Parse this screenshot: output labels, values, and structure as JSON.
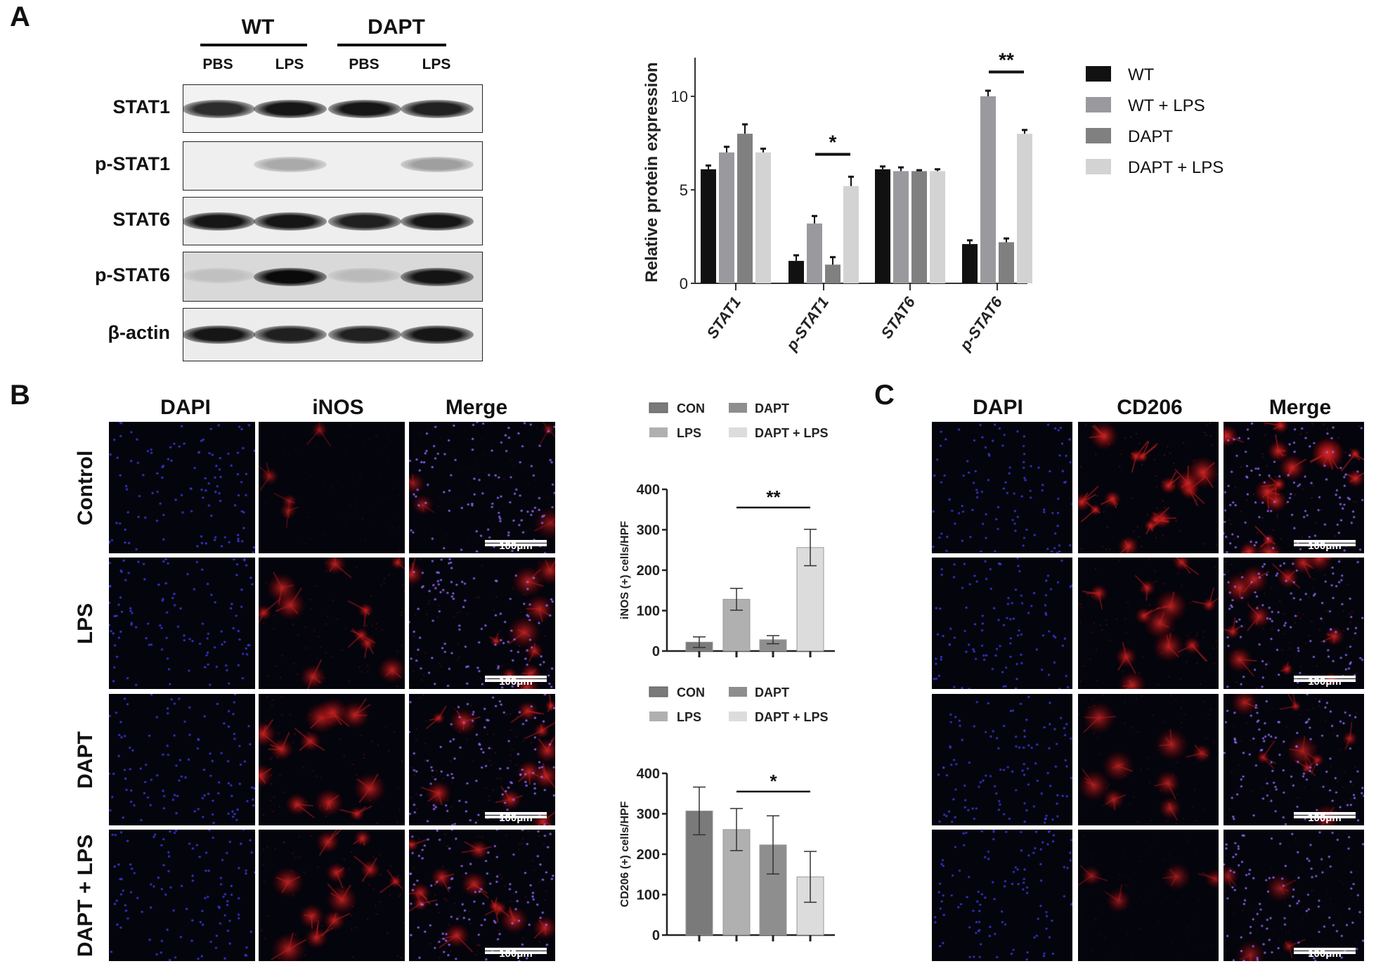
{
  "panels": {
    "a": "A",
    "b": "B",
    "c": "C"
  },
  "blot": {
    "groups": [
      "WT",
      "DAPT"
    ],
    "lanes": [
      "PBS",
      "LPS",
      "PBS",
      "LPS"
    ],
    "rows": [
      {
        "label": "STAT1",
        "bg": "#f2f2f2",
        "bands": [
          0.85,
          0.95,
          0.95,
          0.9
        ]
      },
      {
        "label": "p-STAT1",
        "bg": "#efefef",
        "bands": [
          0.0,
          0.3,
          0.0,
          0.35
        ]
      },
      {
        "label": "STAT6",
        "bg": "#eeeeee",
        "bands": [
          0.95,
          0.95,
          0.9,
          0.95
        ]
      },
      {
        "label": "p-STAT6",
        "bg": "#d9d9d9",
        "bands": [
          0.12,
          1.0,
          0.15,
          0.95
        ]
      },
      {
        "label": "β-actin",
        "bg": "#ececec",
        "bands": [
          0.95,
          0.9,
          0.9,
          0.95
        ]
      }
    ]
  },
  "micro_b": {
    "columns": [
      "DAPI",
      "iNOS",
      "Merge"
    ],
    "rows": [
      "Control",
      "LPS",
      "DAPT",
      "DAPT + LPS"
    ],
    "red_level": [
      0.25,
      0.7,
      0.8,
      0.75
    ],
    "scale_bar": "100μm"
  },
  "micro_c": {
    "columns": [
      "DAPI",
      "CD206",
      "Merge"
    ],
    "red_level": [
      1.0,
      0.75,
      0.55,
      0.3
    ],
    "scale_bar": "100μm"
  },
  "chart_data": [
    {
      "type": "bar",
      "ylabel": "Relative protein expression",
      "categories": [
        "STAT1",
        "p-STAT1",
        "STAT6",
        "p-STAT6"
      ],
      "ylim": [
        0,
        12
      ],
      "yticks": [
        0,
        5,
        10
      ],
      "legend_position": "right",
      "series": [
        {
          "name": "WT",
          "color": "#111111",
          "values": [
            6.1,
            1.2,
            6.1,
            2.1
          ],
          "errors": [
            0.2,
            0.3,
            0.15,
            0.2
          ]
        },
        {
          "name": "WT + LPS",
          "color": "#9a9a9e",
          "values": [
            7.0,
            3.2,
            6.0,
            10.0
          ],
          "errors": [
            0.3,
            0.4,
            0.2,
            0.3
          ]
        },
        {
          "name": "DAPT",
          "color": "#808080",
          "values": [
            8.0,
            1.0,
            6.0,
            2.2
          ],
          "errors": [
            0.5,
            0.4,
            0.05,
            0.2
          ]
        },
        {
          "name": "DAPT + LPS",
          "color": "#d3d3d3",
          "values": [
            7.0,
            5.2,
            6.0,
            8.0
          ],
          "errors": [
            0.2,
            0.5,
            0.1,
            0.2
          ]
        }
      ],
      "significance": [
        {
          "category": "p-STAT1",
          "label": "*",
          "y": 6.9
        },
        {
          "category": "p-STAT6",
          "label": "**",
          "y": 11.3
        }
      ]
    },
    {
      "type": "bar",
      "ylabel": "iNOS (+) cells/HPF",
      "categories": [
        "CON",
        "LPS",
        "DAPT",
        "DAPT + LPS"
      ],
      "colors": [
        "#7a7a7a",
        "#b0b0b0",
        "#8e8e8e",
        "#dcdcdc"
      ],
      "values": [
        22,
        128,
        28,
        256
      ],
      "errors": [
        13,
        27,
        10,
        45
      ],
      "ylim": [
        0,
        400
      ],
      "yticks": [
        0,
        100,
        200,
        300,
        400
      ],
      "legend_position": "top",
      "significance": [
        {
          "from": "LPS",
          "to": "DAPT + LPS",
          "label": "**",
          "y": 355
        }
      ]
    },
    {
      "type": "bar",
      "ylabel": "CD206 (+) cells/HPF",
      "categories": [
        "CON",
        "LPS",
        "DAPT",
        "DAPT + LPS"
      ],
      "colors": [
        "#7a7a7a",
        "#b0b0b0",
        "#8e8e8e",
        "#dcdcdc"
      ],
      "values": [
        307,
        261,
        223,
        144
      ],
      "errors": [
        59,
        52,
        72,
        63
      ],
      "ylim": [
        0,
        400
      ],
      "yticks": [
        0,
        100,
        200,
        300,
        400
      ],
      "legend_position": "top",
      "significance": [
        {
          "from": "LPS",
          "to": "DAPT + LPS",
          "label": "*",
          "y": 355
        }
      ]
    }
  ]
}
